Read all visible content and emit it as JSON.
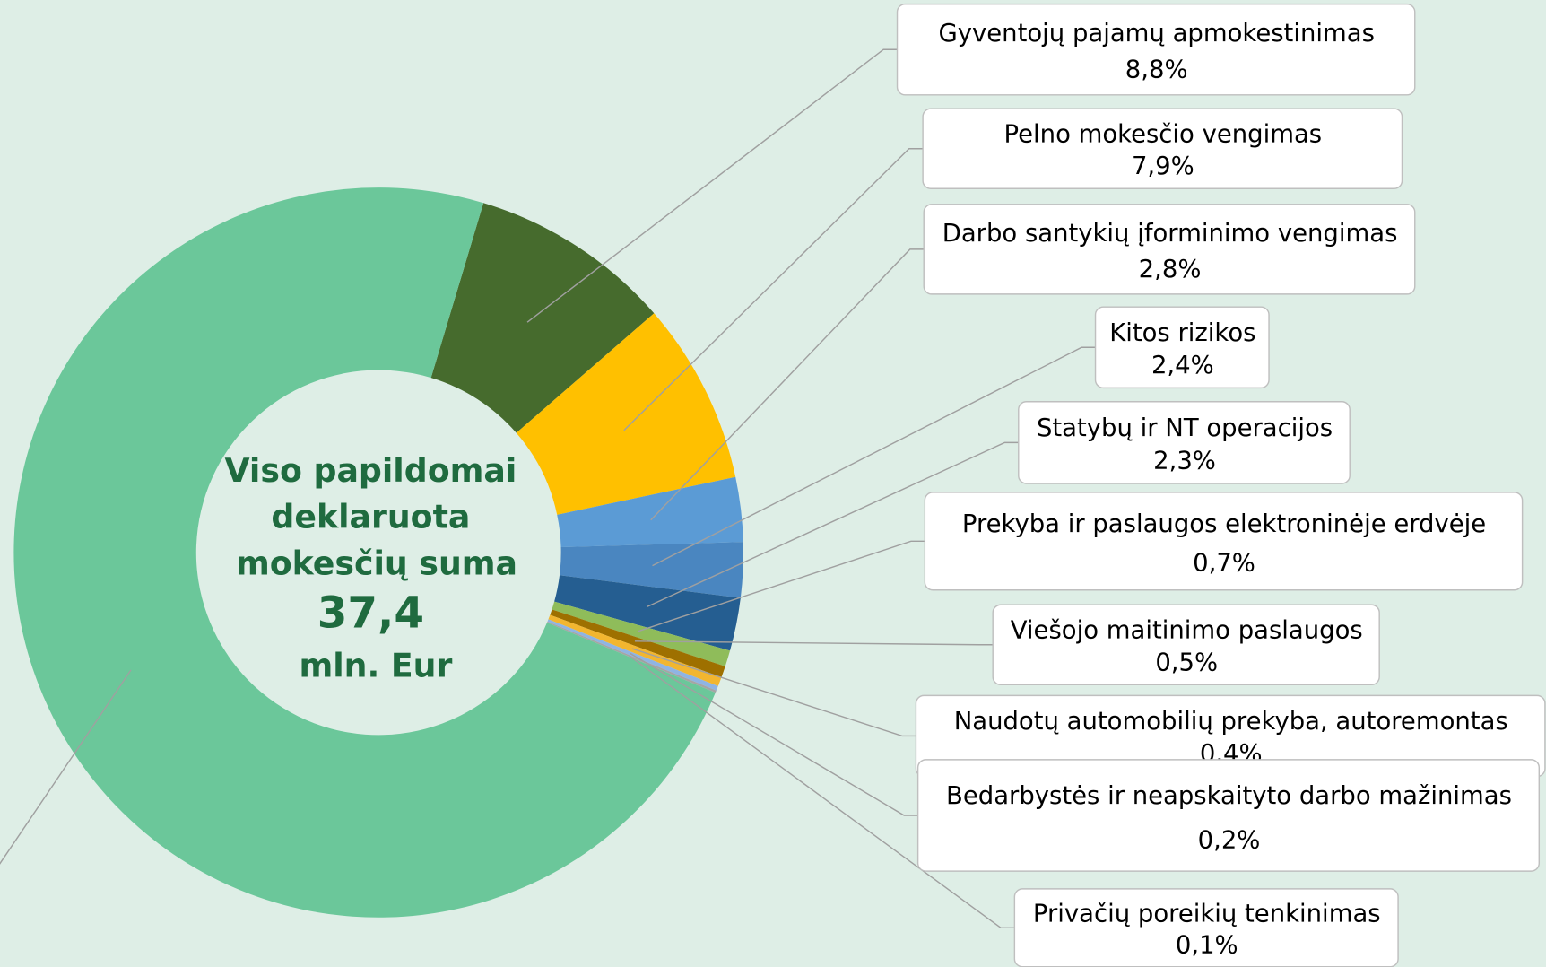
{
  "chart_data": {
    "type": "donut",
    "center_text": {
      "lines": [
        "Viso papildomai",
        "deklaruota",
        "mokesčių suma"
      ],
      "total": "37,4",
      "unit": "mln. Eur"
    },
    "categories": [
      "Gyventojų pajamų apmokestinimas",
      "Pelno mokesčio vengimas",
      "Darbo santykių įforminimo vengimas",
      "Kitos rizikos",
      "Statybų ir NT operacijos",
      "Prekyba ir paslaugos elektroninėje erdvėje",
      "Viešojo maitinimo paslaugos",
      "Naudotų automobilių prekyba, autoremontas",
      "Bedarbystės ir neapskaityto darbo mažinimas",
      "Privačių poreikių tenkinimas",
      null
    ],
    "values": [
      8.8,
      7.9,
      2.8,
      2.4,
      2.3,
      0.7,
      0.5,
      0.4,
      0.2,
      0.1,
      71.9
    ],
    "value_labels": [
      "8,8%",
      "7,9%",
      "2,8%",
      "2,4%",
      "2,3%",
      "0,7%",
      "0,5%",
      "0,4%",
      "0,2%",
      "0,1%",
      null
    ],
    "colors": [
      "#466b2d",
      "#ffc000",
      "#5b9bd5",
      "#4a86c0",
      "#255e91",
      "#8fbc5a",
      "#9e7000",
      "#f2b630",
      "#8fb4e3",
      "#a5a5a5",
      "#6bc79a"
    ]
  }
}
